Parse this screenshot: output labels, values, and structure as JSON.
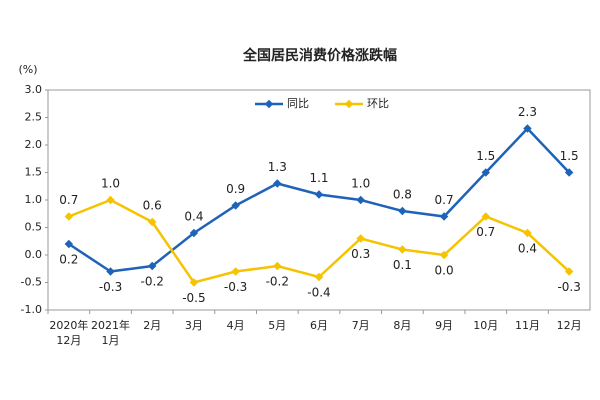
{
  "chart_data": {
    "type": "line",
    "title": "全国居民消费价格涨跌幅",
    "y_label": "(%)",
    "categories": [
      "2020年\n12月",
      "2021年\n1月",
      "2月",
      "3月",
      "4月",
      "5月",
      "6月",
      "7月",
      "8月",
      "9月",
      "10月",
      "11月",
      "12月"
    ],
    "series": [
      {
        "name": "同比",
        "color": "#1f63b9",
        "values": [
          0.2,
          -0.3,
          -0.2,
          0.4,
          0.9,
          1.3,
          1.1,
          1.0,
          0.8,
          0.7,
          1.5,
          2.3,
          1.5
        ],
        "value_labels": [
          "0.2",
          "-0.3",
          "-0.2",
          "0.4",
          "0.9",
          "1.3",
          "1.1",
          "1.0",
          "0.8",
          "0.7",
          "1.5",
          "2.3",
          "1.5"
        ]
      },
      {
        "name": "环比",
        "color": "#f5c300",
        "values": [
          0.7,
          1.0,
          0.6,
          -0.5,
          -0.3,
          -0.2,
          -0.4,
          0.3,
          0.1,
          0.0,
          0.7,
          0.4,
          -0.3
        ],
        "value_labels": [
          "0.7",
          "1.0",
          "0.6",
          "-0.5",
          "-0.3",
          "-0.2",
          "-0.4",
          "0.3",
          "0.1",
          "0.0",
          "0.7",
          "0.4",
          "-0.3"
        ]
      }
    ],
    "ylim": [
      -1,
      3
    ],
    "yticks": [
      {
        "value": -1,
        "label": "-1.0"
      },
      {
        "value": -0.5,
        "label": "-0.5"
      },
      {
        "value": 0,
        "label": "0.0"
      },
      {
        "value": 0.5,
        "label": "0.5"
      },
      {
        "value": 1,
        "label": "1.0"
      },
      {
        "value": 1.5,
        "label": "1.5"
      },
      {
        "value": 2,
        "label": "2.0"
      },
      {
        "value": 2.5,
        "label": "2.5"
      },
      {
        "value": 3,
        "label": "3.0"
      }
    ],
    "legend": "top"
  }
}
